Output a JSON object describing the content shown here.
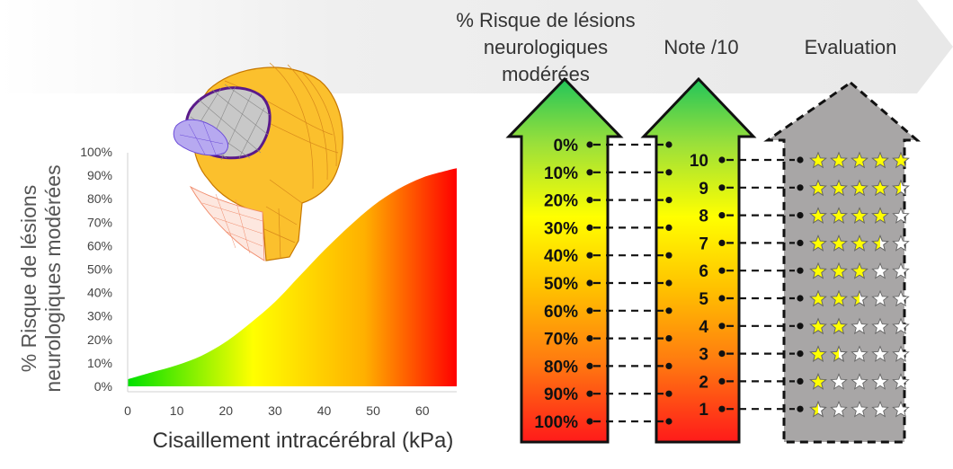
{
  "headers": {
    "risk_line1": "% Risque de lésions",
    "risk_line2": "neurologiques",
    "risk_line3": "modérées",
    "note": "Note /10",
    "evaluation": "Evaluation"
  },
  "chart_data": {
    "type": "area",
    "title": "",
    "xlabel": "Cisaillement intracérébral (kPa)",
    "ylabel_line1": "% Risque de lésions",
    "ylabel_line2": "neurologiques modérées",
    "x_ticks": [
      "0",
      "10",
      "20",
      "30",
      "40",
      "50",
      "60"
    ],
    "y_ticks": [
      "0%",
      "10%",
      "20%",
      "30%",
      "40%",
      "50%",
      "60%",
      "70%",
      "80%",
      "90%",
      "100%"
    ],
    "xlim": [
      0,
      67
    ],
    "ylim": [
      0,
      100
    ],
    "grid": false,
    "legend": "none",
    "series": [
      {
        "x": [
          0,
          5,
          10,
          15,
          20,
          25,
          30,
          35,
          40,
          45,
          50,
          55,
          60,
          65,
          67
        ],
        "y": [
          3,
          6,
          9,
          13,
          19,
          27,
          36,
          47,
          58,
          68,
          77,
          84,
          89,
          92,
          93
        ]
      }
    ],
    "fill_gradient": [
      "#00e000",
      "#ffff00",
      "#ffc000",
      "#ff0000"
    ]
  },
  "risk_scale": [
    "0%",
    "10%",
    "20%",
    "30%",
    "40%",
    "50%",
    "60%",
    "70%",
    "80%",
    "90%",
    "100%"
  ],
  "note_scale": [
    "10",
    "9",
    "8",
    "7",
    "6",
    "5",
    "4",
    "3",
    "2",
    "1"
  ],
  "stars": [
    5,
    4.5,
    4,
    3.5,
    3,
    2.5,
    2,
    1.5,
    1,
    0.5
  ],
  "colors": {
    "banner": "#ededed",
    "arrow_top": "#22c55a",
    "arrow_mid": "#ffff00",
    "arrow_bottom": "#ff1a1a",
    "eval_arrow": "#a8a6a6",
    "star": "#ffff00"
  },
  "icons": {
    "skull_model": "skull-fem-mesh-icon",
    "star": "star-icon"
  }
}
